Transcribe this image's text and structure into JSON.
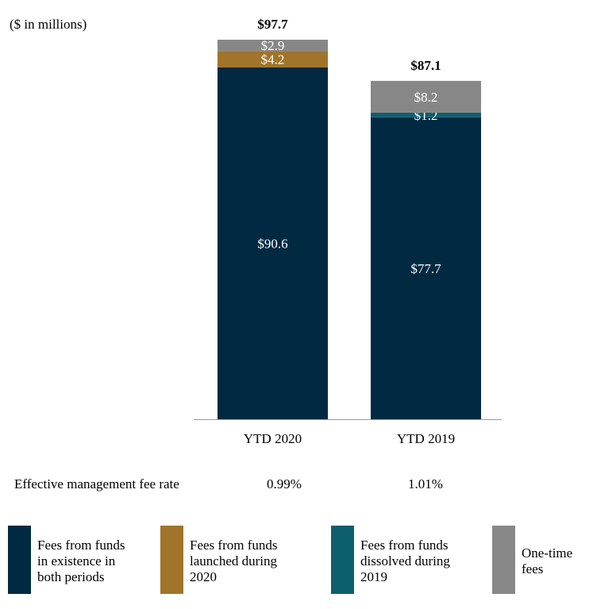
{
  "unit_label": "($ in millions)",
  "chart_data": {
    "type": "bar",
    "stacked": true,
    "categories": [
      "YTD 2020",
      "YTD 2019"
    ],
    "totals": [
      97.7,
      87.1
    ],
    "total_labels": [
      "$97.7",
      "$87.1"
    ],
    "series": [
      {
        "name": "Fees from funds in existence in both periods",
        "values": [
          90.6,
          77.7
        ],
        "labels": [
          "$90.6",
          "$77.7"
        ],
        "color": "#012a42"
      },
      {
        "name": "Fees from funds launched during 2020",
        "values": [
          4.2,
          0
        ],
        "labels": [
          "$4.2",
          ""
        ],
        "color": "#a0742a"
      },
      {
        "name": "Fees from funds dissolved during 2019",
        "values": [
          0,
          1.2
        ],
        "labels": [
          "",
          "$1.2"
        ],
        "color": "#0d5f6e"
      },
      {
        "name": "One-time fees",
        "values": [
          2.9,
          8.2
        ],
        "labels": [
          "$2.9",
          "$8.2"
        ],
        "color": "#878787"
      }
    ],
    "ylim": [
      0,
      97.7
    ],
    "grid": false,
    "legend_position": "bottom"
  },
  "fee_rate": {
    "label": "Effective management fee rate",
    "values": [
      "0.99%",
      "1.01%"
    ]
  },
  "legend": [
    {
      "lines": [
        "Fees from funds",
        "in existence in",
        "both periods"
      ],
      "color": "#012a42"
    },
    {
      "lines": [
        "Fees from funds",
        "launched during",
        "2020"
      ],
      "color": "#a0742a"
    },
    {
      "lines": [
        "Fees from funds",
        "dissolved during",
        "2019"
      ],
      "color": "#0d5f6e"
    },
    {
      "lines": [
        "One-time",
        "fees"
      ],
      "color": "#878787"
    }
  ]
}
